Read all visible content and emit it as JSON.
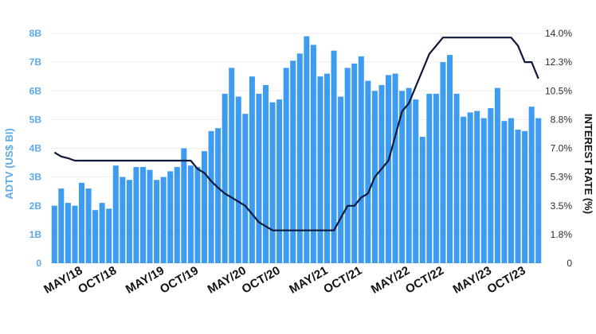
{
  "chart_data": {
    "type": "bar",
    "title": "",
    "ylabel_left": "ADTV (US$ BI)",
    "ylabel_right": "INTEREST RATE (%)",
    "ylim_left": [
      0,
      8
    ],
    "ylim_right": [
      0,
      14
    ],
    "yticks_left": [
      "0",
      "1B",
      "2B",
      "3B",
      "4B",
      "5B",
      "6B",
      "7B",
      "8B"
    ],
    "yticks_right": [
      "0",
      "1.8%",
      "3.5%",
      "5.3%",
      "7.0%",
      "8.8%",
      "10.5%",
      "12.3%",
      "14.0%"
    ],
    "xtick_labels": [
      "MAY/18",
      "OCT/18",
      "MAY/19",
      "OCT/19",
      "MAY/20",
      "OCT/20",
      "MAY/21",
      "OCT/21",
      "MAY/22",
      "OCT/22",
      "MAY/23",
      "OCT/23"
    ],
    "xtick_indices": [
      4,
      9,
      16,
      21,
      28,
      33,
      40,
      45,
      52,
      57,
      64,
      69
    ],
    "grid": true,
    "series": [
      {
        "name": "ADTV",
        "kind": "bar",
        "axis": "left",
        "color": "#3d9cf0",
        "values": [
          2.0,
          2.6,
          2.1,
          2.0,
          2.8,
          2.6,
          1.85,
          2.1,
          1.9,
          3.4,
          3.0,
          2.9,
          3.35,
          3.35,
          3.25,
          2.9,
          3.0,
          3.2,
          3.35,
          4.0,
          3.4,
          3.35,
          3.9,
          4.6,
          4.7,
          5.9,
          6.8,
          5.8,
          5.2,
          6.5,
          5.9,
          6.2,
          5.6,
          5.7,
          6.8,
          7.05,
          7.3,
          7.9,
          7.6,
          6.5,
          6.6,
          7.4,
          5.8,
          6.8,
          6.95,
          7.2,
          6.35,
          6.0,
          6.2,
          6.55,
          6.6,
          6.0,
          6.1,
          5.7,
          4.4,
          5.9,
          5.9,
          7.0,
          7.25,
          5.9,
          5.1,
          5.25,
          5.3,
          5.05,
          5.4,
          6.1,
          4.95,
          5.05,
          4.65,
          4.6,
          5.45,
          5.05
        ]
      },
      {
        "name": "Interest rate",
        "kind": "line",
        "axis": "right",
        "color": "#0e1a3a",
        "values": [
          6.75,
          6.5,
          6.4,
          6.25,
          6.25,
          6.25,
          6.25,
          6.25,
          6.25,
          6.25,
          6.25,
          6.25,
          6.25,
          6.25,
          6.25,
          6.25,
          6.25,
          6.25,
          6.25,
          6.25,
          6.25,
          5.75,
          5.5,
          5.0,
          4.6,
          4.25,
          4.0,
          3.75,
          3.5,
          3.0,
          2.5,
          2.25,
          2.0,
          2.0,
          2.0,
          2.0,
          2.0,
          2.0,
          2.0,
          2.0,
          2.0,
          2.0,
          2.75,
          3.5,
          3.5,
          4.0,
          4.25,
          5.25,
          5.75,
          6.25,
          7.75,
          9.25,
          9.75,
          10.75,
          11.75,
          12.75,
          13.25,
          13.75,
          13.75,
          13.75,
          13.75,
          13.75,
          13.75,
          13.75,
          13.75,
          13.75,
          13.75,
          13.75,
          13.25,
          12.25,
          12.25,
          11.25
        ]
      }
    ]
  }
}
